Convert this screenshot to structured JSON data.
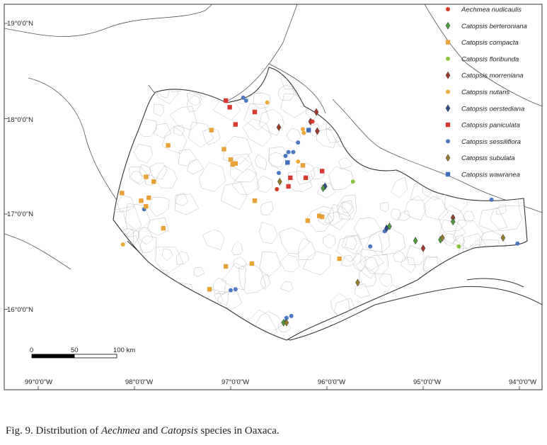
{
  "figure": {
    "caption_prefix": "Fig. 9. Distribution of ",
    "caption_genus1": "Aechmea",
    "caption_mid": " and ",
    "caption_genus2": "Catopsis",
    "caption_suffix": " species in Oaxaca."
  },
  "map": {
    "lat_labels": [
      "19°0'0\"N",
      "18°0'0\"N",
      "17°0'0\"N",
      "16°0'0\"N"
    ],
    "lon_labels": [
      "99°0'0\"W",
      "98°0'0\"W",
      "97°0'0\"W",
      "96°0'0\"W",
      "95°0'0\"W",
      "94°0'0\"W"
    ],
    "scale_bar": {
      "labels": [
        "0",
        "50",
        "100 km"
      ]
    },
    "colors": {
      "background": "#ffffff",
      "land": "#ffffff",
      "outline": "#444444",
      "municipality": "#bbbbbb",
      "frame": "#333333"
    }
  },
  "legend": [
    {
      "label": "Aechmea nudicaulis",
      "marker": "circle",
      "color": "#d33a2c"
    },
    {
      "label": "Catopsis berteroniana",
      "marker": "diamond",
      "color": "#4e9a3a"
    },
    {
      "label": "Catopsis compacta",
      "marker": "square",
      "color": "#e8a23a"
    },
    {
      "label": "Catopsis floribunda",
      "marker": "circle",
      "color": "#8cc542"
    },
    {
      "label": "Catopsis morreniana",
      "marker": "diamond",
      "color": "#a23a2c"
    },
    {
      "label": "Catopsis nutans",
      "marker": "circle",
      "color": "#eeaa3c"
    },
    {
      "label": "Catopsis oerstediana",
      "marker": "diamond",
      "color": "#2d4f8a"
    },
    {
      "label": "Catopsis paniculata",
      "marker": "square",
      "color": "#d63a30"
    },
    {
      "label": "Catopsis sessiliflora",
      "marker": "circle",
      "color": "#4e79c0"
    },
    {
      "label": "Catopsis subulata",
      "marker": "diamond",
      "color": "#9a7a2c"
    },
    {
      "label": "Catopsis wawranea",
      "marker": "square",
      "color": "#3f6fb8"
    }
  ],
  "occurrences": [
    {
      "species": "Catopsis paniculata",
      "lon": -97.05,
      "lat": 18.19
    },
    {
      "species": "Catopsis paniculata",
      "lon": -97.01,
      "lat": 18.12
    },
    {
      "species": "Catopsis paniculata",
      "lon": -96.75,
      "lat": 18.07
    },
    {
      "species": "Catopsis paniculata",
      "lon": -96.95,
      "lat": 17.94
    },
    {
      "species": "Catopsis paniculata",
      "lon": -96.38,
      "lat": 17.38
    },
    {
      "species": "Catopsis paniculata",
      "lon": -96.4,
      "lat": 17.29
    },
    {
      "species": "Catopsis paniculata",
      "lon": -96.22,
      "lat": 17.38
    },
    {
      "species": "Catopsis paniculata",
      "lon": -96.05,
      "lat": 17.45
    },
    {
      "species": "Catopsis sessiliflora",
      "lon": -96.87,
      "lat": 18.22
    },
    {
      "species": "Catopsis sessiliflora",
      "lon": -96.84,
      "lat": 18.19
    },
    {
      "species": "Catopsis sessiliflora",
      "lon": -96.3,
      "lat": 17.75
    },
    {
      "species": "Catopsis sessiliflora",
      "lon": -96.35,
      "lat": 17.65
    },
    {
      "species": "Catopsis sessiliflora",
      "lon": -96.4,
      "lat": 17.65
    },
    {
      "species": "Catopsis sessiliflora",
      "lon": -96.43,
      "lat": 17.61
    },
    {
      "species": "Catopsis sessiliflora",
      "lon": -96.5,
      "lat": 17.43
    },
    {
      "species": "Catopsis sessiliflora",
      "lon": -97.9,
      "lat": 17.05
    },
    {
      "species": "Catopsis sessiliflora",
      "lon": -95.55,
      "lat": 16.66
    },
    {
      "species": "Catopsis sessiliflora",
      "lon": -95.4,
      "lat": 16.82
    },
    {
      "species": "Catopsis sessiliflora",
      "lon": -97.0,
      "lat": 16.2
    },
    {
      "species": "Catopsis sessiliflora",
      "lon": -96.95,
      "lat": 16.21
    },
    {
      "species": "Catopsis sessiliflora",
      "lon": -96.42,
      "lat": 15.91
    },
    {
      "species": "Catopsis sessiliflora",
      "lon": -96.37,
      "lat": 15.93
    },
    {
      "species": "Catopsis sessiliflora",
      "lon": -96.43,
      "lat": 15.87
    },
    {
      "species": "Catopsis sessiliflora",
      "lon": -94.29,
      "lat": 17.15
    },
    {
      "species": "Catopsis sessiliflora",
      "lon": -94.02,
      "lat": 16.69
    },
    {
      "species": "Catopsis compacta",
      "lon": -97.2,
      "lat": 17.88
    },
    {
      "species": "Catopsis compacta",
      "lon": -97.65,
      "lat": 17.72
    },
    {
      "species": "Catopsis compacta",
      "lon": -97.07,
      "lat": 17.68
    },
    {
      "species": "Catopsis compacta",
      "lon": -97.0,
      "lat": 17.57
    },
    {
      "species": "Catopsis compacta",
      "lon": -96.98,
      "lat": 17.52
    },
    {
      "species": "Catopsis compacta",
      "lon": -96.95,
      "lat": 17.53
    },
    {
      "species": "Catopsis compacta",
      "lon": -97.88,
      "lat": 17.39
    },
    {
      "species": "Catopsis compacta",
      "lon": -97.8,
      "lat": 17.34
    },
    {
      "species": "Catopsis compacta",
      "lon": -98.13,
      "lat": 17.22
    },
    {
      "species": "Catopsis compacta",
      "lon": -97.85,
      "lat": 17.17
    },
    {
      "species": "Catopsis compacta",
      "lon": -97.93,
      "lat": 17.14
    },
    {
      "species": "Catopsis compacta",
      "lon": -97.88,
      "lat": 17.08
    },
    {
      "species": "Catopsis compacta",
      "lon": -96.75,
      "lat": 17.14
    },
    {
      "species": "Catopsis compacta",
      "lon": -97.7,
      "lat": 16.85
    },
    {
      "species": "Catopsis compacta",
      "lon": -96.05,
      "lat": 16.97
    },
    {
      "species": "Catopsis compacta",
      "lon": -96.08,
      "lat": 16.98
    },
    {
      "species": "Catopsis compacta",
      "lon": -96.2,
      "lat": 16.93
    },
    {
      "species": "Catopsis compacta",
      "lon": -96.78,
      "lat": 16.48
    },
    {
      "species": "Catopsis compacta",
      "lon": -97.05,
      "lat": 16.45
    },
    {
      "species": "Catopsis compacta",
      "lon": -97.22,
      "lat": 16.21
    },
    {
      "species": "Catopsis compacta",
      "lon": -95.87,
      "lat": 16.53
    },
    {
      "species": "Catopsis compacta",
      "lon": -96.25,
      "lat": 17.51
    },
    {
      "species": "Catopsis nutans",
      "lon": -96.62,
      "lat": 18.17
    },
    {
      "species": "Catopsis nutans",
      "lon": -96.25,
      "lat": 17.89
    },
    {
      "species": "Catopsis nutans",
      "lon": -96.24,
      "lat": 17.85
    },
    {
      "species": "Catopsis nutans",
      "lon": -98.12,
      "lat": 16.68
    },
    {
      "species": "Catopsis nutans",
      "lon": -96.3,
      "lat": 17.55
    },
    {
      "species": "Catopsis morreniana",
      "lon": -96.11,
      "lat": 18.07
    },
    {
      "species": "Catopsis morreniana",
      "lon": -96.17,
      "lat": 17.97
    },
    {
      "species": "Catopsis morreniana",
      "lon": -96.1,
      "lat": 17.87
    },
    {
      "species": "Catopsis morreniana",
      "lon": -96.5,
      "lat": 17.91
    },
    {
      "species": "Catopsis morreniana",
      "lon": -94.69,
      "lat": 16.96
    },
    {
      "species": "Catopsis morreniana",
      "lon": -95.0,
      "lat": 16.64
    },
    {
      "species": "Catopsis oerstediana",
      "lon": -96.02,
      "lat": 17.29
    },
    {
      "species": "Catopsis oerstediana",
      "lon": -95.38,
      "lat": 16.85
    },
    {
      "species": "Catopsis berteroniana",
      "lon": -96.04,
      "lat": 17.27
    },
    {
      "species": "Catopsis berteroniana",
      "lon": -95.35,
      "lat": 16.87
    },
    {
      "species": "Catopsis berteroniana",
      "lon": -95.08,
      "lat": 16.72
    },
    {
      "species": "Catopsis berteroniana",
      "lon": -94.82,
      "lat": 16.73
    },
    {
      "species": "Catopsis berteroniana",
      "lon": -94.69,
      "lat": 16.92
    },
    {
      "species": "Catopsis berteroniana",
      "lon": -96.45,
      "lat": 15.86
    },
    {
      "species": "Catopsis subulata",
      "lon": -96.49,
      "lat": 17.34
    },
    {
      "species": "Catopsis subulata",
      "lon": -95.68,
      "lat": 16.28
    },
    {
      "species": "Catopsis subulata",
      "lon": -94.8,
      "lat": 16.75
    },
    {
      "species": "Catopsis subulata",
      "lon": -94.17,
      "lat": 16.75
    },
    {
      "species": "Catopsis subulata",
      "lon": -96.42,
      "lat": 15.86
    },
    {
      "species": "Catopsis floribunda",
      "lon": -95.73,
      "lat": 17.34
    },
    {
      "species": "Catopsis floribunda",
      "lon": -94.63,
      "lat": 16.66
    },
    {
      "species": "Catopsis wawranea",
      "lon": -96.19,
      "lat": 17.88
    },
    {
      "species": "Catopsis wawranea",
      "lon": -96.41,
      "lat": 17.54
    },
    {
      "species": "Aechmea nudicaulis",
      "lon": -96.15,
      "lat": 17.97
    },
    {
      "species": "Aechmea nudicaulis",
      "lon": -96.52,
      "lat": 17.26
    }
  ]
}
